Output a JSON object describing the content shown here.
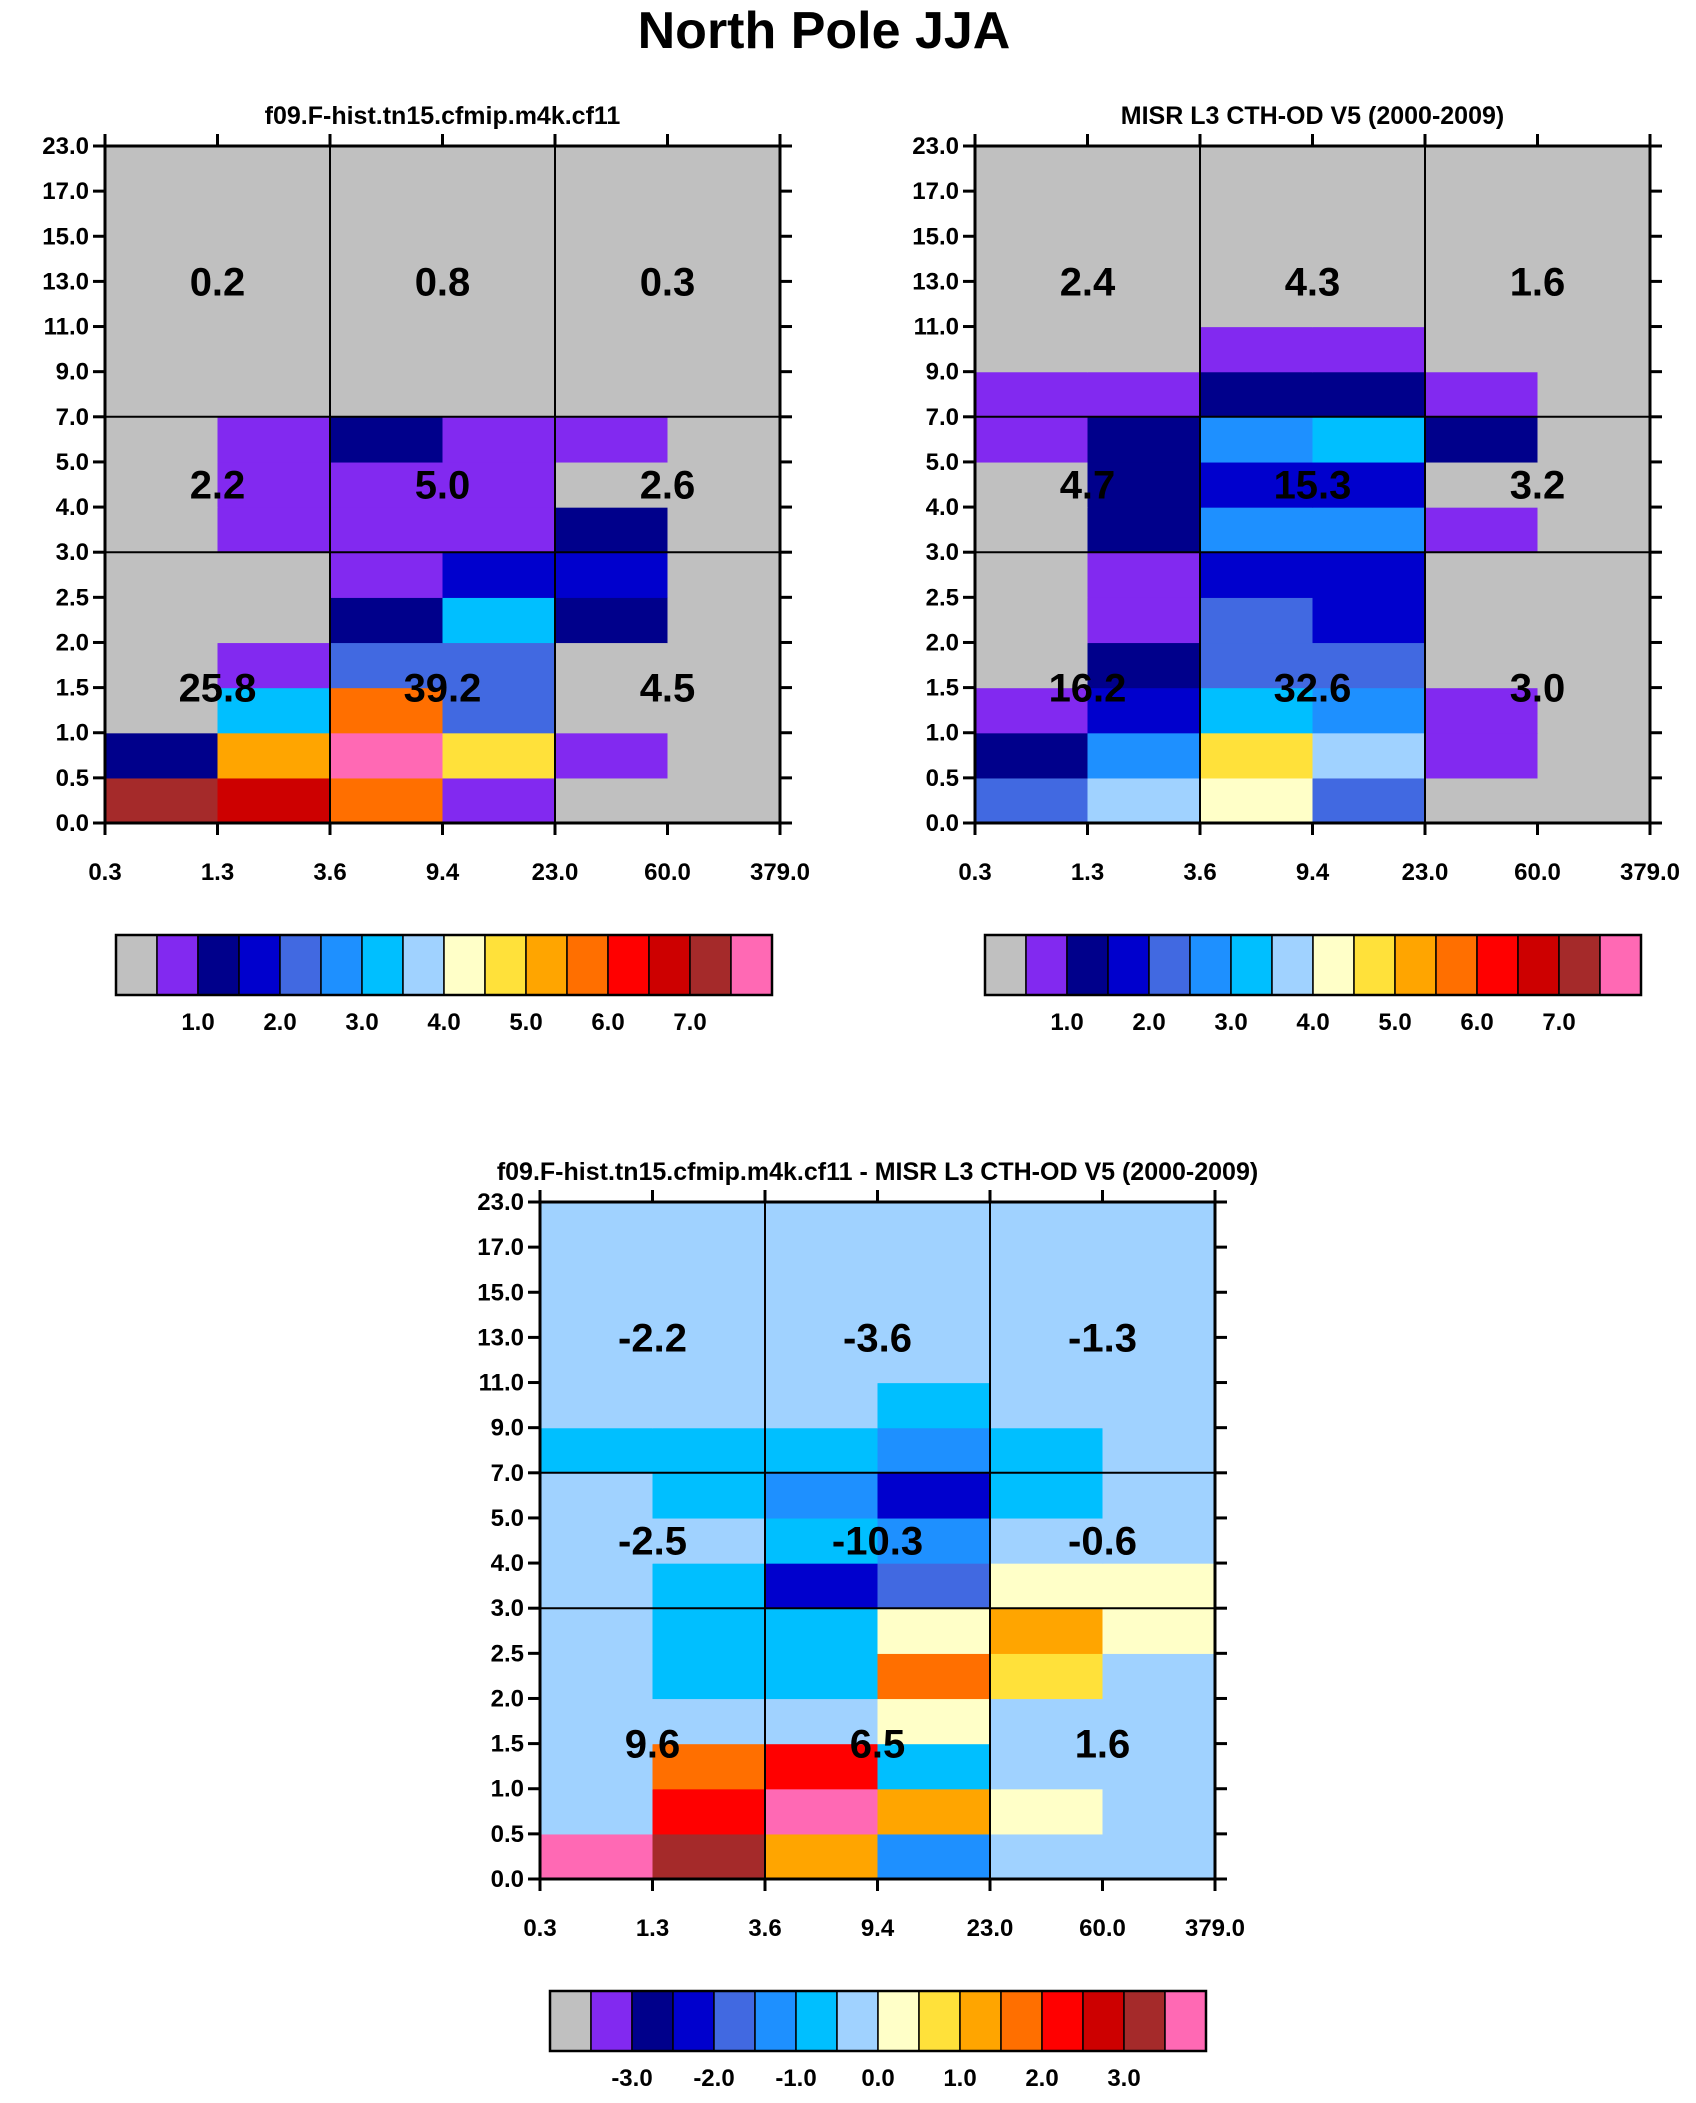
{
  "title": "North Pole JJA",
  "chart_data": {
    "type": "heatmap",
    "x_ticks": [
      "0.3",
      "1.3",
      "3.6",
      "9.4",
      "23.0",
      "60.0",
      "379.0"
    ],
    "y_ticks": [
      "0.0",
      "0.5",
      "1.0",
      "1.5",
      "2.0",
      "2.5",
      "3.0",
      "4.0",
      "5.0",
      "7.0",
      "9.0",
      "11.0",
      "13.0",
      "15.0",
      "17.0",
      "23.0"
    ],
    "palette": [
      "#c0c0c0",
      "#8229f0",
      "#00008b",
      "#0000cd",
      "#4169e1",
      "#1e90ff",
      "#00bfff",
      "#a0d2ff",
      "#ffffc8",
      "#ffe13a",
      "#ffa500",
      "#ff6f00",
      "#ff0000",
      "#cd0000",
      "#a52a2a",
      "#ff69b4"
    ],
    "panels": [
      {
        "title": "f09.F-hist.tn15.cfmip.m4k.cf11",
        "grid": [
          [
            14,
            13,
            11,
            1,
            0,
            0
          ],
          [
            2,
            10,
            15,
            9,
            1,
            0
          ],
          [
            0,
            6,
            11,
            4,
            0,
            0
          ],
          [
            0,
            1,
            4,
            4,
            0,
            0
          ],
          [
            0,
            0,
            2,
            6,
            2,
            0
          ],
          [
            0,
            0,
            1,
            3,
            3,
            0
          ],
          [
            0,
            1,
            1,
            1,
            2,
            0
          ],
          [
            0,
            1,
            1,
            1,
            0,
            0
          ],
          [
            0,
            1,
            2,
            1,
            1,
            0
          ],
          [
            0,
            0,
            0,
            0,
            0,
            0
          ],
          [
            0,
            0,
            0,
            0,
            0,
            0
          ],
          [
            0,
            0,
            0,
            0,
            0,
            0
          ],
          [
            0,
            0,
            0,
            0,
            0,
            0
          ],
          [
            0,
            0,
            0,
            0,
            0,
            0
          ],
          [
            0,
            0,
            0,
            0,
            0,
            0
          ]
        ],
        "totals": [
          [
            "25.8",
            "39.2",
            "4.5"
          ],
          [
            "2.2",
            "5.0",
            "2.6"
          ],
          [
            "0.2",
            "0.8",
            "0.3"
          ]
        ],
        "colorbar_labels": [
          "1.0",
          "2.0",
          "3.0",
          "4.0",
          "5.0",
          "6.0",
          "7.0"
        ]
      },
      {
        "title": "MISR L3 CTH-OD V5 (2000-2009)",
        "grid": [
          [
            4,
            7,
            8,
            4,
            0,
            0
          ],
          [
            2,
            5,
            9,
            7,
            1,
            0
          ],
          [
            1,
            3,
            6,
            5,
            1,
            0
          ],
          [
            0,
            2,
            4,
            4,
            0,
            0
          ],
          [
            0,
            1,
            4,
            3,
            0,
            0
          ],
          [
            0,
            1,
            3,
            3,
            0,
            0
          ],
          [
            0,
            2,
            5,
            5,
            1,
            0
          ],
          [
            0,
            2,
            3,
            3,
            0,
            0
          ],
          [
            1,
            2,
            5,
            6,
            2,
            0
          ],
          [
            1,
            1,
            2,
            2,
            1,
            0
          ],
          [
            0,
            0,
            1,
            1,
            0,
            0
          ],
          [
            0,
            0,
            0,
            0,
            0,
            0
          ],
          [
            0,
            0,
            0,
            0,
            0,
            0
          ],
          [
            0,
            0,
            0,
            0,
            0,
            0
          ],
          [
            0,
            0,
            0,
            0,
            0,
            0
          ]
        ],
        "totals": [
          [
            "16.2",
            "32.6",
            "3.0"
          ],
          [
            "4.7",
            "15.3",
            "3.2"
          ],
          [
            "2.4",
            "4.3",
            "1.6"
          ]
        ],
        "colorbar_labels": [
          "1.0",
          "2.0",
          "3.0",
          "4.0",
          "5.0",
          "6.0",
          "7.0"
        ]
      },
      {
        "title": "f09.F-hist.tn15.cfmip.m4k.cf11 - MISR L3 CTH-OD V5 (2000-2009)",
        "grid": [
          [
            15,
            14,
            10,
            5,
            7,
            7
          ],
          [
            7,
            12,
            15,
            10,
            8,
            7
          ],
          [
            7,
            11,
            12,
            6,
            7,
            7
          ],
          [
            7,
            7,
            7,
            8,
            7,
            7
          ],
          [
            7,
            6,
            6,
            11,
            9,
            7
          ],
          [
            7,
            6,
            6,
            8,
            10,
            8
          ],
          [
            7,
            6,
            3,
            4,
            8,
            8
          ],
          [
            7,
            7,
            6,
            5,
            7,
            7
          ],
          [
            7,
            6,
            5,
            3,
            6,
            7
          ],
          [
            6,
            6,
            6,
            5,
            6,
            7
          ],
          [
            7,
            7,
            7,
            6,
            7,
            7
          ],
          [
            7,
            7,
            7,
            7,
            7,
            7
          ],
          [
            7,
            7,
            7,
            7,
            7,
            7
          ],
          [
            7,
            7,
            7,
            7,
            7,
            7
          ],
          [
            7,
            7,
            7,
            7,
            7,
            7
          ]
        ],
        "totals": [
          [
            "9.6",
            "6.5",
            "1.6"
          ],
          [
            "-2.5",
            "-10.3",
            "-0.6"
          ],
          [
            "-2.2",
            "-3.6",
            "-1.3"
          ]
        ],
        "colorbar_labels": [
          "-3.0",
          "-2.0",
          "-1.0",
          "0.0",
          "1.0",
          "2.0",
          "3.0"
        ]
      }
    ]
  }
}
